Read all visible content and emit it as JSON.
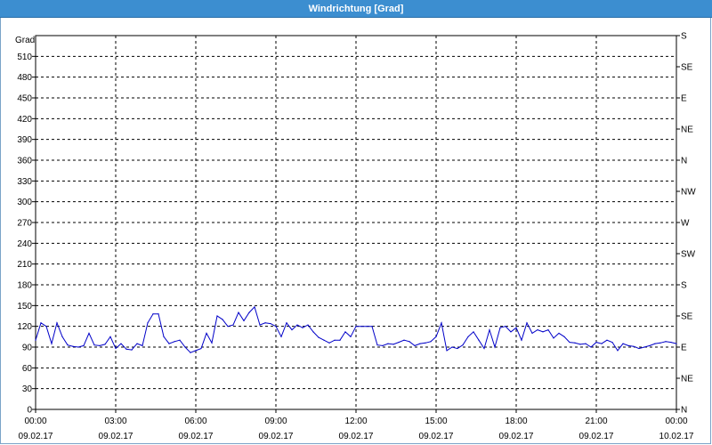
{
  "window": {
    "title": "Windrichtung [Grad]"
  },
  "chart_data": {
    "type": "line",
    "title": "Windrichtung [Grad]",
    "ylabel": "Grad",
    "xlabel": "",
    "ylim": [
      0,
      540
    ],
    "xlim": [
      0,
      24
    ],
    "grid": true,
    "y_ticks": [
      0,
      30,
      60,
      90,
      120,
      150,
      180,
      210,
      240,
      270,
      300,
      330,
      360,
      390,
      420,
      450,
      480,
      510
    ],
    "y_tick_labels": [
      "0",
      "30",
      "60",
      "90",
      "120",
      "150",
      "180",
      "210",
      "240",
      "270",
      "300",
      "330",
      "360",
      "390",
      "420",
      "450",
      "480",
      "510"
    ],
    "y2_ticks": [
      0,
      45,
      90,
      135,
      180,
      225,
      270,
      315,
      360,
      405,
      450,
      495,
      540
    ],
    "y2_tick_labels": [
      "N",
      "NE",
      "E",
      "SE",
      "S",
      "SW",
      "W",
      "NW",
      "N",
      "NE",
      "E",
      "SE",
      "S"
    ],
    "x_ticks": [
      0,
      3,
      6,
      9,
      12,
      15,
      18,
      21,
      24
    ],
    "x_tick_labels": [
      {
        "time": "00:00",
        "date": "09.02.17"
      },
      {
        "time": "03:00",
        "date": "09.02.17"
      },
      {
        "time": "06:00",
        "date": "09.02.17"
      },
      {
        "time": "09:00",
        "date": "09.02.17"
      },
      {
        "time": "12:00",
        "date": "09.02.17"
      },
      {
        "time": "15:00",
        "date": "09.02.17"
      },
      {
        "time": "18:00",
        "date": "09.02.17"
      },
      {
        "time": "21:00",
        "date": "09.02.17"
      },
      {
        "time": "00:00",
        "date": "10.02.17"
      }
    ],
    "series": [
      {
        "color": "#0000c8",
        "x": [
          0,
          0.2,
          0.4,
          0.6,
          0.8,
          1.0,
          1.2,
          1.4,
          1.6,
          1.8,
          2.0,
          2.2,
          2.4,
          2.6,
          2.8,
          3.0,
          3.2,
          3.4,
          3.6,
          3.8,
          4.0,
          4.2,
          4.4,
          4.6,
          4.8,
          5.0,
          5.2,
          5.4,
          5.6,
          5.8,
          6.0,
          6.2,
          6.4,
          6.6,
          6.8,
          7.0,
          7.2,
          7.4,
          7.6,
          7.8,
          8.0,
          8.2,
          8.4,
          8.6,
          8.8,
          9.0,
          9.2,
          9.4,
          9.6,
          9.8,
          10.0,
          10.2,
          10.4,
          10.6,
          10.8,
          11.0,
          11.2,
          11.4,
          11.6,
          11.8,
          12.0,
          12.2,
          12.4,
          12.6,
          12.8,
          13.0,
          13.2,
          13.4,
          13.6,
          13.8,
          14.0,
          14.2,
          14.4,
          14.6,
          14.8,
          15.0,
          15.2,
          15.4,
          15.6,
          15.8,
          16.0,
          16.2,
          16.4,
          16.6,
          16.8,
          17.0,
          17.2,
          17.4,
          17.6,
          17.8,
          18.0,
          18.2,
          18.4,
          18.6,
          18.8,
          19.0,
          19.2,
          19.4,
          19.6,
          19.8,
          20.0,
          20.2,
          20.4,
          20.6,
          20.8,
          21.0,
          21.2,
          21.4,
          21.6,
          21.8,
          22.0,
          22.2,
          22.4,
          22.6,
          22.8,
          23.0,
          23.2,
          23.4,
          23.6,
          23.8,
          24.0
        ],
        "values": [
          100,
          125,
          120,
          95,
          125,
          105,
          93,
          91,
          90,
          92,
          110,
          93,
          92,
          94,
          105,
          88,
          95,
          87,
          86,
          95,
          92,
          125,
          138,
          138,
          105,
          95,
          98,
          100,
          90,
          82,
          85,
          88,
          110,
          96,
          135,
          130,
          120,
          122,
          140,
          128,
          140,
          148,
          122,
          125,
          124,
          120,
          105,
          125,
          115,
          122,
          118,
          122,
          112,
          104,
          100,
          96,
          100,
          100,
          112,
          105,
          120,
          120,
          120,
          120,
          93,
          92,
          95,
          94,
          97,
          100,
          98,
          92,
          95,
          96,
          98,
          105,
          125,
          85,
          90,
          88,
          93,
          105,
          112,
          100,
          88,
          115,
          90,
          118,
          120,
          112,
          118,
          100,
          125,
          110,
          115,
          112,
          115,
          103,
          110,
          105,
          97,
          96,
          94,
          95,
          90,
          97,
          95,
          100,
          97,
          85,
          95,
          92,
          91,
          88,
          90,
          92,
          95,
          96,
          98,
          97,
          95
        ],
        "values_note": ""
      }
    ]
  }
}
